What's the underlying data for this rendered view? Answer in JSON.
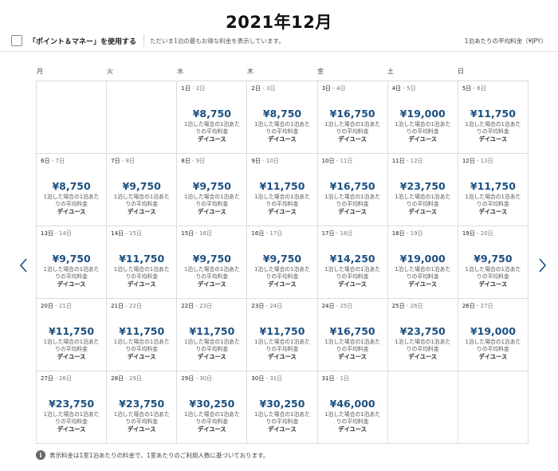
{
  "header": {
    "month_title": "2021年12月",
    "points_label": "「ポイント＆マネー」を使用する",
    "info_text": "ただいま1泊の最もお得な料金を表示しています。",
    "avg_label": "1泊あたりの平均料金（¥JPY）"
  },
  "weekdays": [
    "月",
    "火",
    "水",
    "木",
    "金",
    "土",
    "日"
  ],
  "days": [
    {
      "in": "1日",
      "out": "2日",
      "price": "¥8,750"
    },
    {
      "in": "2日",
      "out": "3日",
      "price": "¥8,750"
    },
    {
      "in": "3日",
      "out": "4日",
      "price": "¥16,750"
    },
    {
      "in": "4日",
      "out": "5日",
      "price": "¥19,000"
    },
    {
      "in": "5日",
      "out": "6日",
      "price": "¥11,750"
    },
    {
      "in": "6日",
      "out": "7日",
      "price": "¥8,750"
    },
    {
      "in": "7日",
      "out": "8日",
      "price": "¥9,750"
    },
    {
      "in": "8日",
      "out": "9日",
      "price": "¥9,750"
    },
    {
      "in": "9日",
      "out": "10日",
      "price": "¥11,750"
    },
    {
      "in": "10日",
      "out": "11日",
      "price": "¥16,750"
    },
    {
      "in": "11日",
      "out": "12日",
      "price": "¥23,750"
    },
    {
      "in": "12日",
      "out": "13日",
      "price": "¥11,750"
    },
    {
      "in": "13日",
      "out": "14日",
      "price": "¥9,750"
    },
    {
      "in": "14日",
      "out": "15日",
      "price": "¥11,750"
    },
    {
      "in": "15日",
      "out": "16日",
      "price": "¥9,750"
    },
    {
      "in": "16日",
      "out": "17日",
      "price": "¥9,750"
    },
    {
      "in": "17日",
      "out": "18日",
      "price": "¥14,250"
    },
    {
      "in": "18日",
      "out": "19日",
      "price": "¥19,000"
    },
    {
      "in": "19日",
      "out": "20日",
      "price": "¥9,750"
    },
    {
      "in": "20日",
      "out": "21日",
      "price": "¥11,750"
    },
    {
      "in": "21日",
      "out": "22日",
      "price": "¥11,750"
    },
    {
      "in": "22日",
      "out": "23日",
      "price": "¥11,750"
    },
    {
      "in": "23日",
      "out": "24日",
      "price": "¥11,750"
    },
    {
      "in": "24日",
      "out": "25日",
      "price": "¥16,750"
    },
    {
      "in": "25日",
      "out": "26日",
      "price": "¥23,750"
    },
    {
      "in": "26日",
      "out": "27日",
      "price": "¥19,000"
    },
    {
      "in": "27日",
      "out": "28日",
      "price": "¥23,750"
    },
    {
      "in": "28日",
      "out": "29日",
      "price": "¥23,750"
    },
    {
      "in": "29日",
      "out": "30日",
      "price": "¥30,250"
    },
    {
      "in": "30日",
      "out": "31日",
      "price": "¥30,250"
    },
    {
      "in": "31日",
      "out": "1日",
      "price": "¥46,000"
    }
  ],
  "cell_desc": "1泊した場合の1泊あたりの平均料金",
  "plan_label": "デイユース",
  "date_separator": " - ",
  "leading_blank_days": 2,
  "footer": {
    "info_icon": "i",
    "note": "表示料金は1室1泊あたりの料金で、1室あたりのご利用人数に基づいております。"
  },
  "colors": {
    "price": "#1c4f80",
    "border": "#dcdcdc"
  },
  "icons": {
    "prev": "chevron-left-icon",
    "next": "chevron-right-icon",
    "info": "info-icon"
  }
}
